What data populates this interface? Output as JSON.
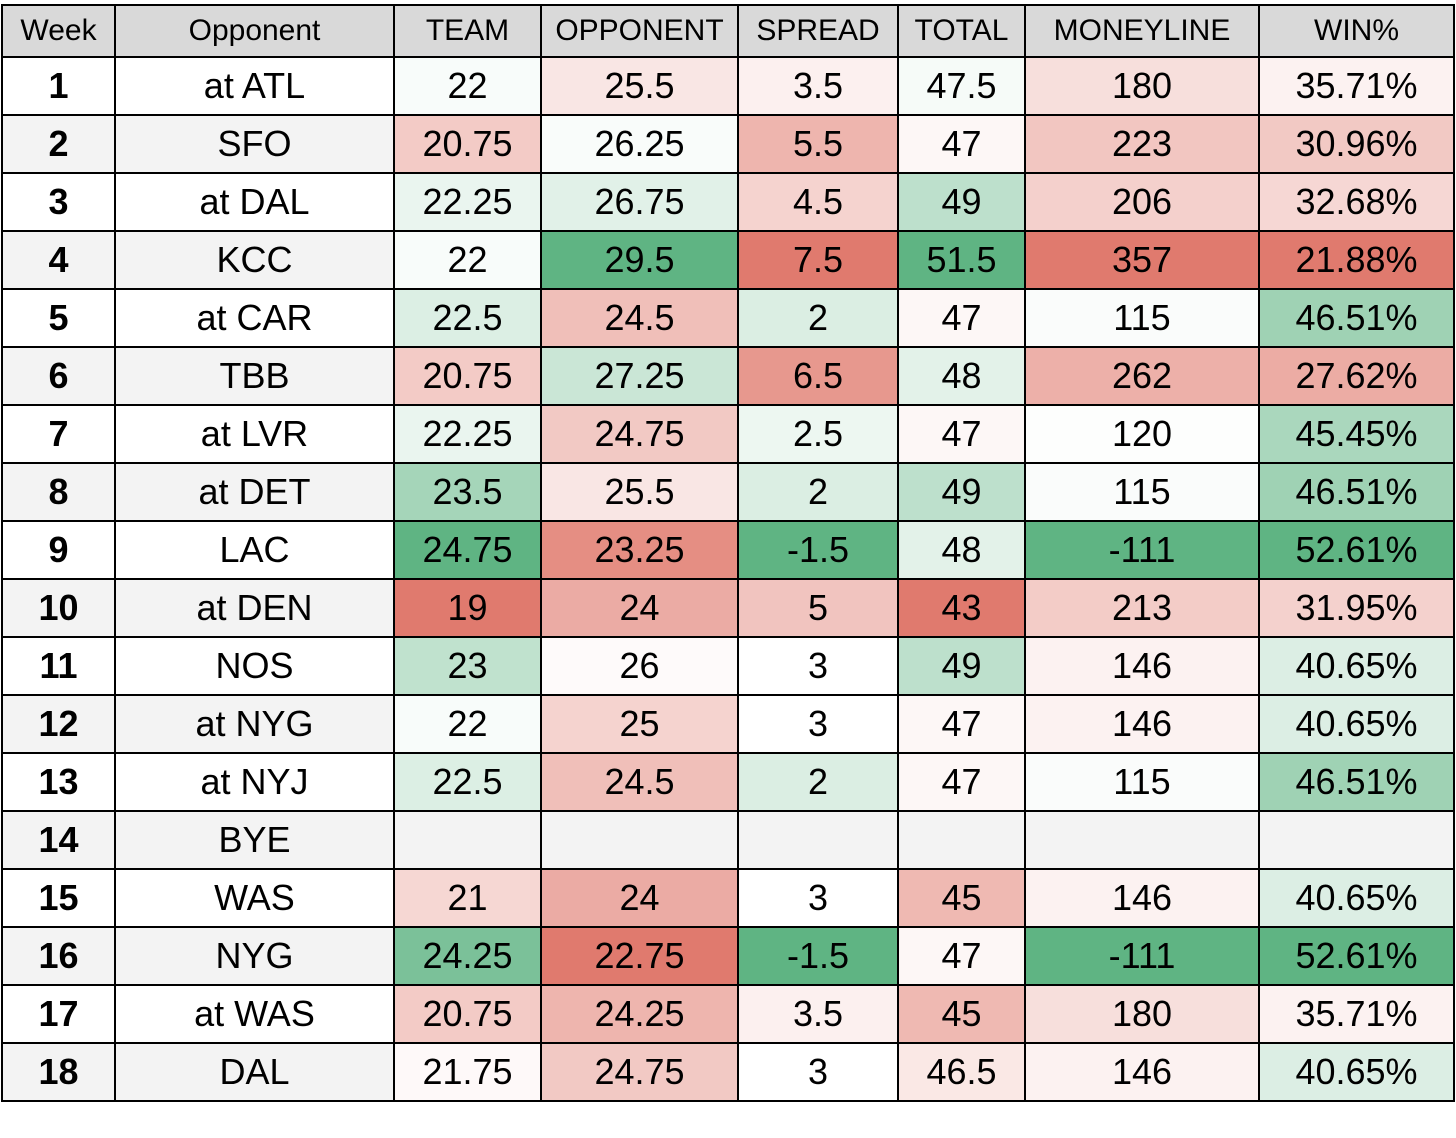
{
  "table": {
    "headers": [
      "Week",
      "Opponent",
      "TEAM",
      "OPPONENT",
      "SPREAD",
      "TOTAL",
      "MONEYLINE",
      "WIN%"
    ],
    "rows": [
      {
        "week": "1",
        "opponent": "at ATL",
        "team": "22",
        "opp": "25.5",
        "spread": "3.5",
        "total": "47.5",
        "moneyline": "180",
        "win": "35.71%"
      },
      {
        "week": "2",
        "opponent": "SFO",
        "team": "20.75",
        "opp": "26.25",
        "spread": "5.5",
        "total": "47",
        "moneyline": "223",
        "win": "30.96%"
      },
      {
        "week": "3",
        "opponent": "at DAL",
        "team": "22.25",
        "opp": "26.75",
        "spread": "4.5",
        "total": "49",
        "moneyline": "206",
        "win": "32.68%"
      },
      {
        "week": "4",
        "opponent": "KCC",
        "team": "22",
        "opp": "29.5",
        "spread": "7.5",
        "total": "51.5",
        "moneyline": "357",
        "win": "21.88%"
      },
      {
        "week": "5",
        "opponent": "at CAR",
        "team": "22.5",
        "opp": "24.5",
        "spread": "2",
        "total": "47",
        "moneyline": "115",
        "win": "46.51%"
      },
      {
        "week": "6",
        "opponent": "TBB",
        "team": "20.75",
        "opp": "27.25",
        "spread": "6.5",
        "total": "48",
        "moneyline": "262",
        "win": "27.62%"
      },
      {
        "week": "7",
        "opponent": "at LVR",
        "team": "22.25",
        "opp": "24.75",
        "spread": "2.5",
        "total": "47",
        "moneyline": "120",
        "win": "45.45%"
      },
      {
        "week": "8",
        "opponent": "at DET",
        "team": "23.5",
        "opp": "25.5",
        "spread": "2",
        "total": "49",
        "moneyline": "115",
        "win": "46.51%"
      },
      {
        "week": "9",
        "opponent": "LAC",
        "team": "24.75",
        "opp": "23.25",
        "spread": "-1.5",
        "total": "48",
        "moneyline": "-111",
        "win": "52.61%"
      },
      {
        "week": "10",
        "opponent": "at DEN",
        "team": "19",
        "opp": "24",
        "spread": "5",
        "total": "43",
        "moneyline": "213",
        "win": "31.95%"
      },
      {
        "week": "11",
        "opponent": "NOS",
        "team": "23",
        "opp": "26",
        "spread": "3",
        "total": "49",
        "moneyline": "146",
        "win": "40.65%"
      },
      {
        "week": "12",
        "opponent": "at NYG",
        "team": "22",
        "opp": "25",
        "spread": "3",
        "total": "47",
        "moneyline": "146",
        "win": "40.65%"
      },
      {
        "week": "13",
        "opponent": "at NYJ",
        "team": "22.5",
        "opp": "24.5",
        "spread": "2",
        "total": "47",
        "moneyline": "115",
        "win": "46.51%"
      },
      {
        "week": "14",
        "opponent": "BYE",
        "team": "",
        "opp": "",
        "spread": "",
        "total": "",
        "moneyline": "",
        "win": ""
      },
      {
        "week": "15",
        "opponent": "WAS",
        "team": "21",
        "opp": "24",
        "spread": "3",
        "total": "45",
        "moneyline": "146",
        "win": "40.65%"
      },
      {
        "week": "16",
        "opponent": "NYG",
        "team": "24.25",
        "opp": "22.75",
        "spread": "-1.5",
        "total": "47",
        "moneyline": "-111",
        "win": "52.61%"
      },
      {
        "week": "17",
        "opponent": "at WAS",
        "team": "20.75",
        "opp": "24.25",
        "spread": "3.5",
        "total": "45",
        "moneyline": "180",
        "win": "35.71%"
      },
      {
        "week": "18",
        "opponent": "DAL",
        "team": "21.75",
        "opp": "24.75",
        "spread": "3",
        "total": "46.5",
        "moneyline": "146",
        "win": "40.65%"
      }
    ],
    "colors": {
      "header_bg": "#d9d9d9",
      "alt_row_bg": "#f3f3f3",
      "row_bg": "#ffffff",
      "red_strong": "#e07a6e",
      "white": "#ffffff",
      "green_strong": "#5fb483"
    }
  }
}
